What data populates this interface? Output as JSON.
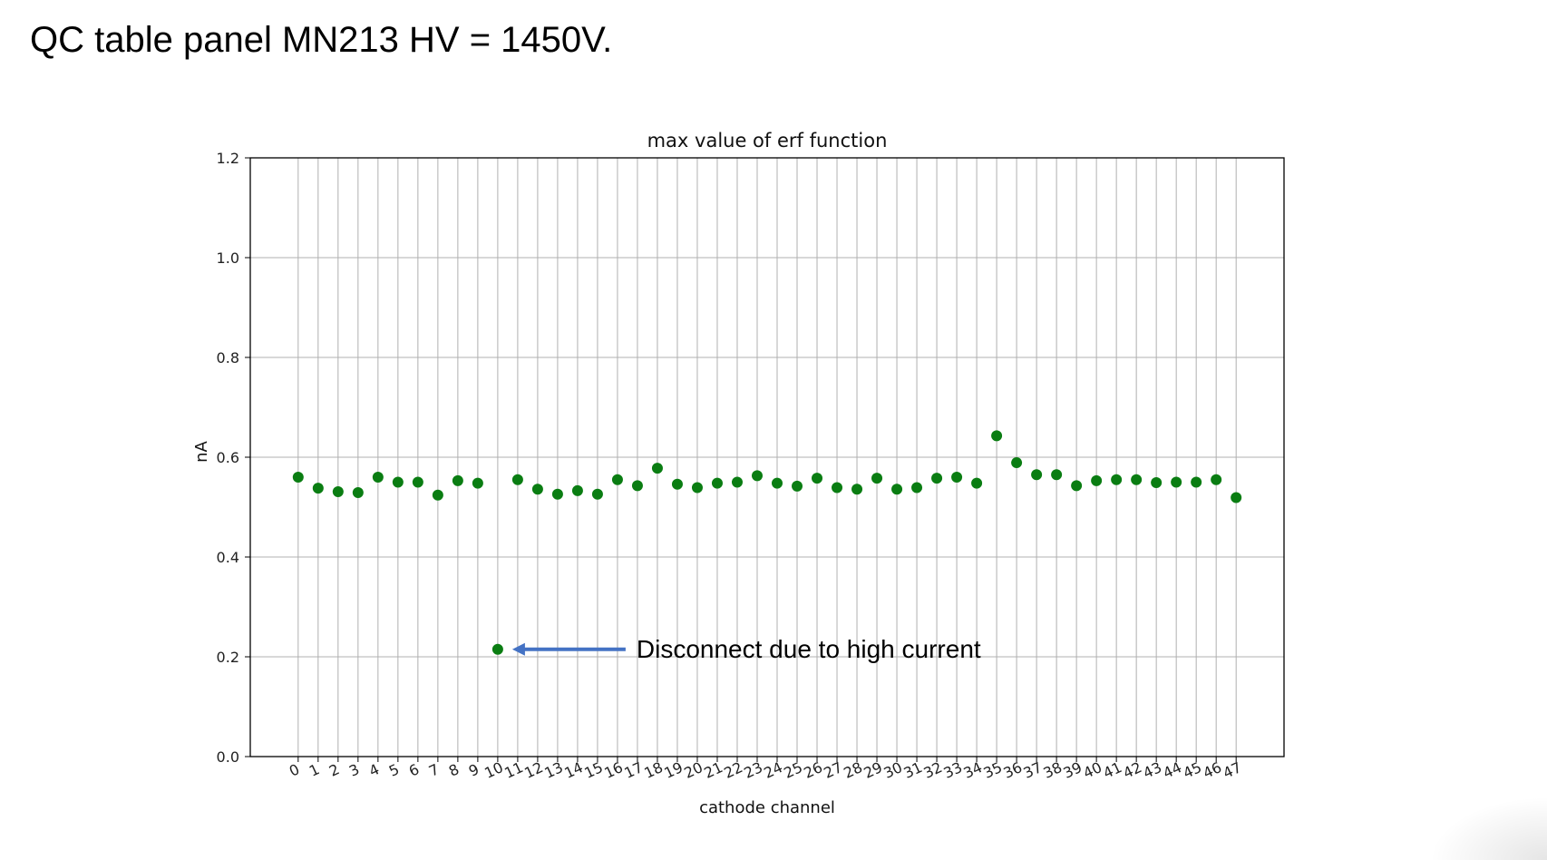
{
  "slide": {
    "title": "QC table panel MN213 HV = 1450V."
  },
  "chart_data": {
    "type": "scatter",
    "title": "max value of erf function",
    "xlabel": "cathode channel",
    "ylabel": "nA",
    "xlim": [
      -2.4,
      49.4
    ],
    "ylim": [
      0.0,
      1.2
    ],
    "yticks": [
      0.0,
      0.2,
      0.4,
      0.6,
      0.8,
      1.0,
      1.2
    ],
    "ytick_labels": [
      "0.0",
      "0.2",
      "0.4",
      "0.6",
      "0.8",
      "1.0",
      "1.2"
    ],
    "xticks": [
      0,
      1,
      2,
      3,
      4,
      5,
      6,
      7,
      8,
      9,
      10,
      11,
      12,
      13,
      14,
      15,
      16,
      17,
      18,
      19,
      20,
      21,
      22,
      23,
      24,
      25,
      26,
      27,
      28,
      29,
      30,
      31,
      32,
      33,
      34,
      35,
      36,
      37,
      38,
      39,
      40,
      41,
      42,
      43,
      44,
      45,
      46,
      47
    ],
    "xtick_labels": [
      "0",
      "1",
      "2",
      "3",
      "4",
      "5",
      "6",
      "7",
      "8",
      "9",
      "10",
      "11",
      "12",
      "13",
      "14",
      "15",
      "16",
      "17",
      "18",
      "19",
      "20",
      "21",
      "22",
      "23",
      "24",
      "25",
      "26",
      "27",
      "28",
      "29",
      "30",
      "31",
      "32",
      "33",
      "34",
      "35",
      "36",
      "37",
      "38",
      "39",
      "40",
      "41",
      "42",
      "43",
      "44",
      "45",
      "46",
      "47"
    ],
    "grid": true,
    "marker_color": "#0a7d12",
    "x": [
      0,
      1,
      2,
      3,
      4,
      5,
      6,
      7,
      8,
      9,
      10,
      11,
      12,
      13,
      14,
      15,
      16,
      17,
      18,
      19,
      20,
      21,
      22,
      23,
      24,
      25,
      26,
      27,
      28,
      29,
      30,
      31,
      32,
      33,
      34,
      35,
      36,
      37,
      38,
      39,
      40,
      41,
      42,
      43,
      44,
      45,
      46,
      47
    ],
    "y": [
      0.56,
      0.538,
      0.531,
      0.529,
      0.56,
      0.55,
      0.55,
      0.524,
      0.553,
      0.548,
      0.215,
      0.555,
      0.536,
      0.526,
      0.533,
      0.526,
      0.555,
      0.543,
      0.578,
      0.546,
      0.539,
      0.548,
      0.55,
      0.563,
      0.548,
      0.542,
      0.558,
      0.539,
      0.536,
      0.558,
      0.536,
      0.539,
      0.558,
      0.56,
      0.548,
      0.643,
      0.589,
      0.565,
      0.565,
      0.543,
      0.553,
      0.555,
      0.555,
      0.549,
      0.55,
      0.55,
      0.555,
      0.519
    ],
    "annotation": {
      "text": "Disconnect due to high current",
      "target_x": 10,
      "target_y": 0.215,
      "arrow_color": "#4472c4"
    }
  }
}
